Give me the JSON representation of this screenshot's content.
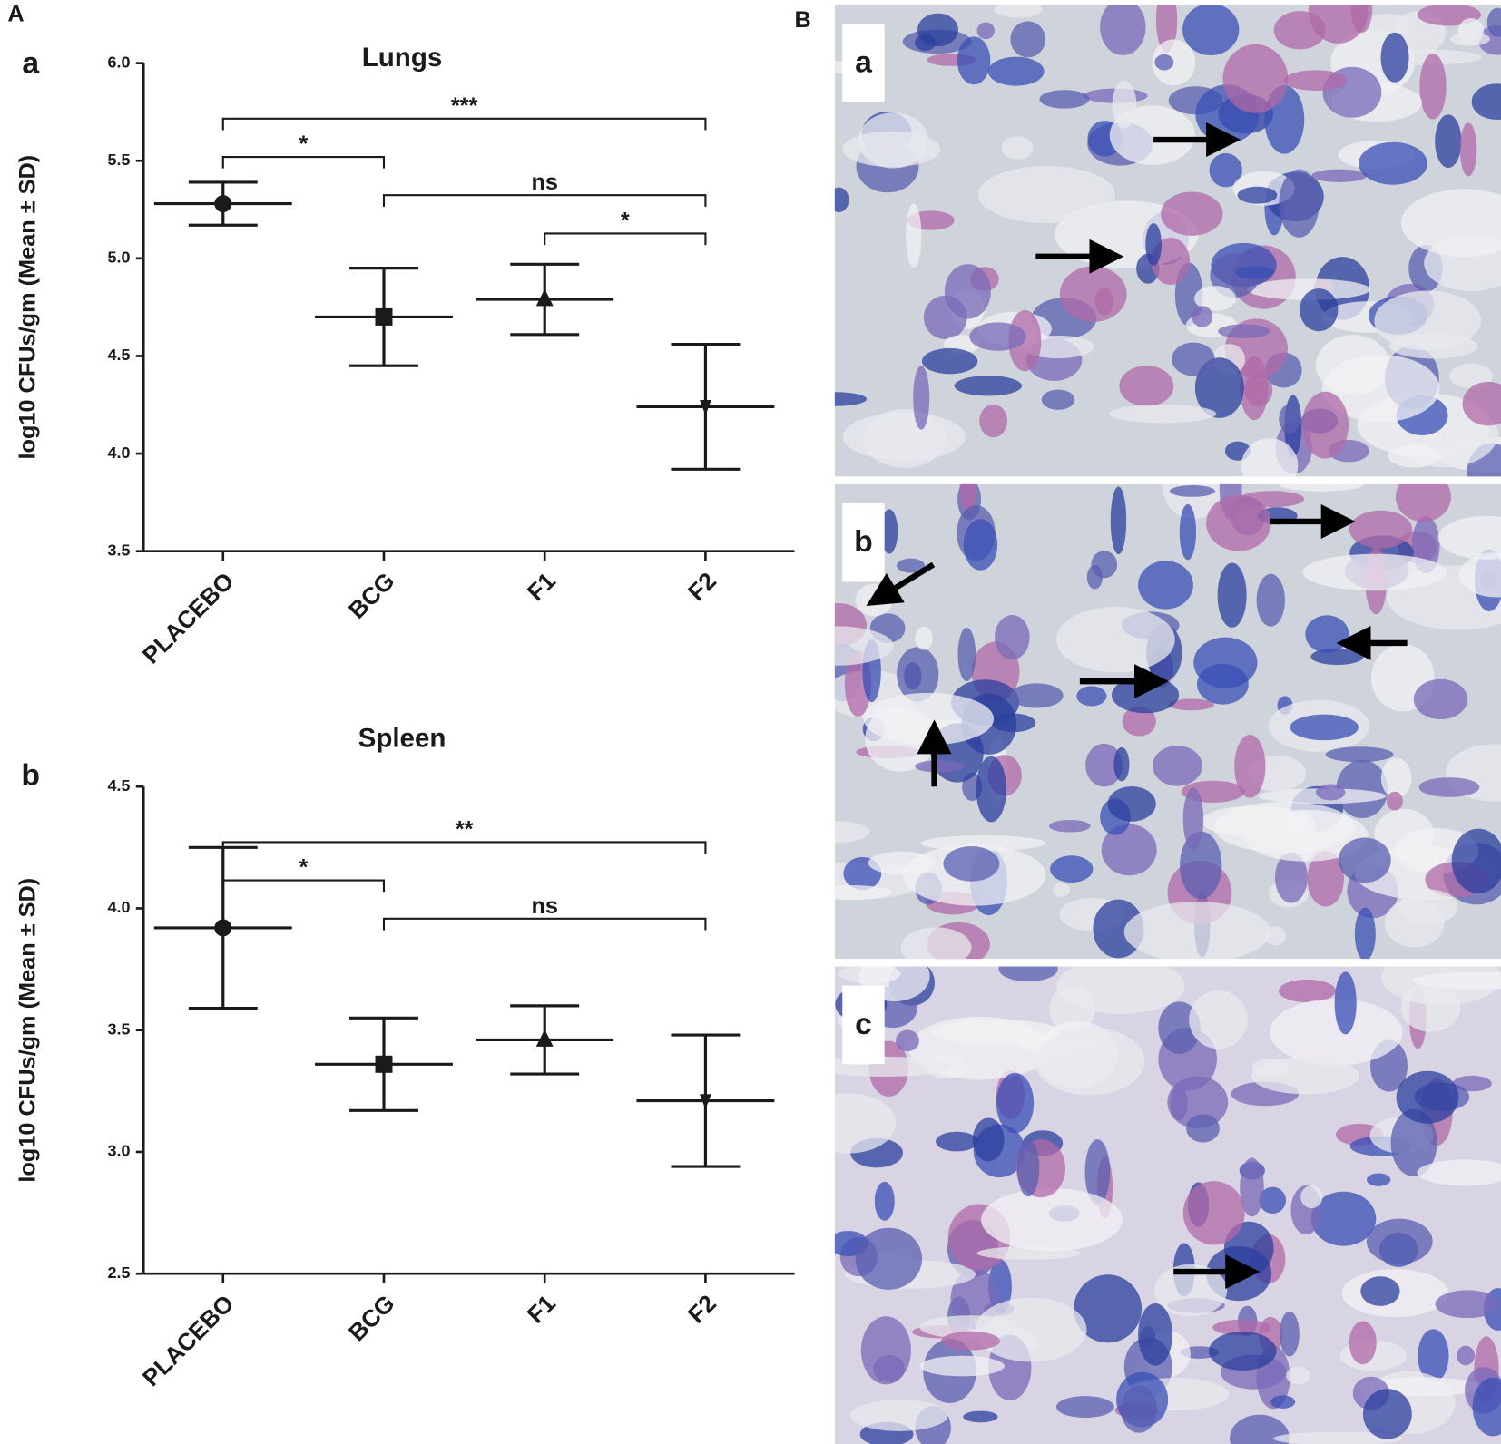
{
  "panel_labels": [
    "A",
    "B"
  ],
  "chart_data": [
    {
      "type": "errorbar",
      "panel": "a",
      "title": "Lungs",
      "ylabel": "log10 CFUs/gm (Mean ± SD)",
      "categories": [
        "PLACEBO",
        "BCG",
        "F1",
        "F2"
      ],
      "values": [
        5.28,
        4.7,
        4.79,
        4.24
      ],
      "errors": [
        0.11,
        0.25,
        0.18,
        0.32
      ],
      "markers": [
        "circle",
        "square",
        "triangle",
        "triangle-down"
      ],
      "color": "#1a1a1a",
      "ylim": [
        3.5,
        6.0
      ],
      "yticks": [
        3.5,
        {
          "value": 4,
          "label": "4.0"
        },
        4.5,
        {
          "value": 5,
          "label": "5.0"
        },
        5.5,
        {
          "value": 6,
          "label": "6.0"
        }
      ],
      "annotations": [
        {
          "text": "***",
          "from": 0,
          "to": 3
        },
        {
          "text": "*",
          "from": 0,
          "to": 1
        },
        {
          "text": "ns",
          "from": 1,
          "to": 3
        },
        {
          "text": "*",
          "from": 2,
          "to": 3
        }
      ]
    },
    {
      "type": "errorbar",
      "panel": "b",
      "title": "Spleen",
      "ylabel": "log10 CFUs/gm (Mean ± SD)",
      "categories": [
        "PLACEBO",
        "BCG",
        "F1",
        "F2"
      ],
      "values": [
        3.92,
        3.36,
        3.46,
        3.21
      ],
      "errors": [
        0.33,
        0.19,
        0.14,
        0.27
      ],
      "markers": [
        "circle",
        "square",
        "triangle",
        "triangle-down"
      ],
      "color": "#1a1a1a",
      "ylim": [
        2.5,
        4.5
      ],
      "yticks": [
        2.5,
        {
          "value": 3,
          "label": "3.0"
        },
        3.5,
        {
          "value": 4,
          "label": "4.0"
        },
        4.5
      ],
      "annotations": [
        {
          "text": "**",
          "from": 0,
          "to": 3
        },
        {
          "text": "*",
          "from": 0,
          "to": 1
        },
        {
          "text": "ns",
          "from": 1,
          "to": 3
        }
      ]
    }
  ],
  "micrographs": [
    {
      "label": "a"
    },
    {
      "label": "b"
    },
    {
      "label": "c"
    }
  ]
}
